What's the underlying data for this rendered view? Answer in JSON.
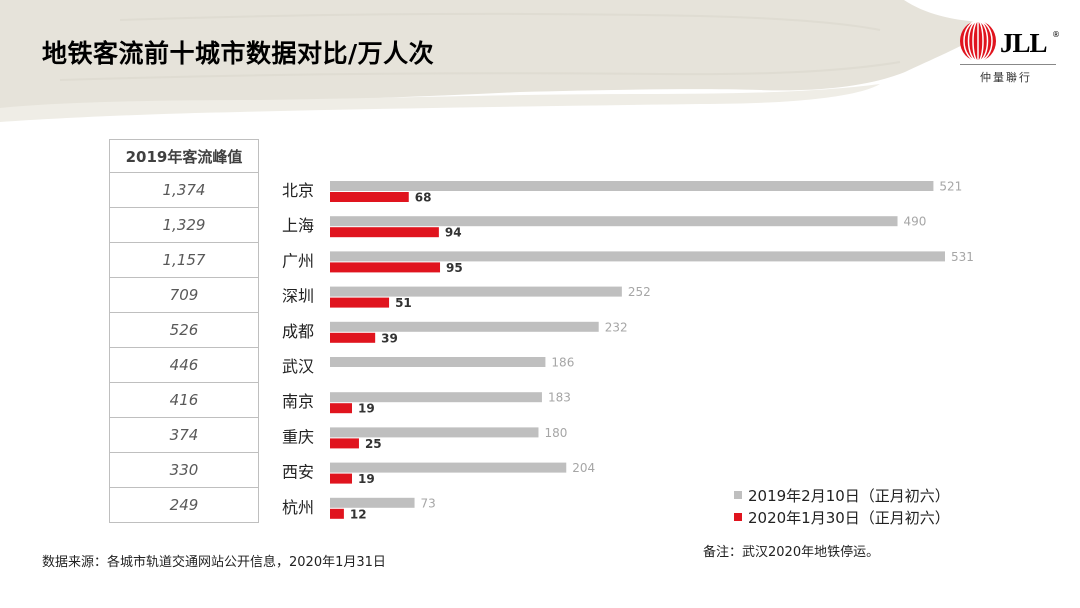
{
  "title": "地铁客流前十城市数据对比/万人次",
  "logo": {
    "text": "JLL",
    "registered": "®",
    "subtitle": "仲量聯行"
  },
  "peak_table": {
    "header": "2019年客流峰值",
    "values": [
      "1,374",
      "1,329",
      "1,157",
      "709",
      "526",
      "446",
      "416",
      "374",
      "330",
      "249"
    ]
  },
  "chart_data": {
    "type": "bar",
    "orientation": "horizontal",
    "categories": [
      "北京",
      "上海",
      "广州",
      "深圳",
      "成都",
      "武汉",
      "南京",
      "重庆",
      "西安",
      "杭州"
    ],
    "series": [
      {
        "name": "2019年2月10日（正月初六）",
        "color": "#bfbfbf",
        "values": [
          521,
          490,
          531,
          252,
          232,
          186,
          183,
          180,
          204,
          73
        ]
      },
      {
        "name": "2020年1月30日（正月初六）",
        "color": "#e0141e",
        "values": [
          68,
          94,
          95,
          51,
          39,
          null,
          19,
          25,
          19,
          12
        ]
      }
    ],
    "xlim": [
      0,
      531
    ],
    "grid": false,
    "legend": "bottom-right",
    "data_labels": true
  },
  "note": "备注：武汉2020年地铁停运。",
  "source": "数据来源：各城市轨道交通网站公开信息，2020年1月31日"
}
